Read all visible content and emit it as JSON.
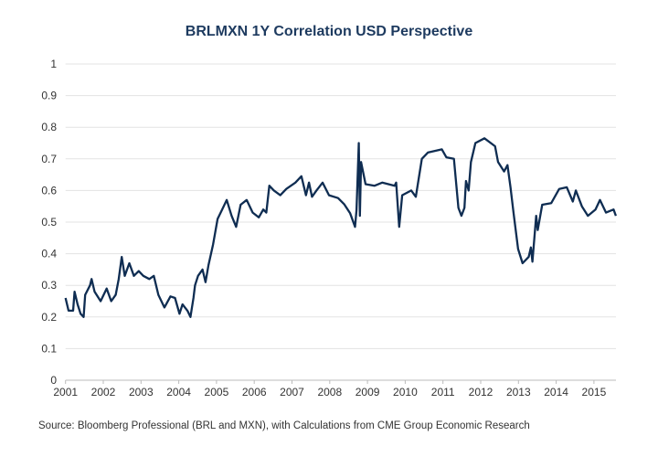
{
  "chart_data": {
    "type": "line",
    "title": "BRLMXN 1Y Correlation USD Perspective",
    "source": "Source: Bloomberg Professional (BRL and MXN), with Calculations from CME Group Economic Research",
    "xlabel": "",
    "ylabel": "",
    "xlim": [
      2001,
      2015.6
    ],
    "ylim": [
      0,
      1
    ],
    "grid": "horizontal",
    "legend": "none",
    "line_color": "#0f2d52",
    "x_ticks": [
      "2001",
      "2002",
      "2003",
      "2004",
      "2005",
      "2006",
      "2007",
      "2008",
      "2009",
      "2010",
      "2011",
      "2012",
      "2013",
      "2014",
      "2015"
    ],
    "y_ticks": [
      "0",
      "0.1",
      "0.2",
      "0.3",
      "0.4",
      "0.5",
      "0.6",
      "0.7",
      "0.8",
      "0.9",
      "1"
    ],
    "series": [
      {
        "x": [
          2001.0,
          2001.08,
          2001.2,
          2001.24,
          2001.32,
          2001.4,
          2001.48,
          2001.52,
          2001.65,
          2001.69,
          2001.77,
          2001.93,
          2002.09,
          2002.21,
          2002.33,
          2002.41,
          2002.49,
          2002.57,
          2002.69,
          2002.81,
          2002.94,
          2003.06,
          2003.22,
          2003.34,
          2003.46,
          2003.62,
          2003.78,
          2003.9,
          2004.02,
          2004.1,
          2004.23,
          2004.31,
          2004.39,
          2004.43,
          2004.51,
          2004.63,
          2004.71,
          2004.79,
          2004.91,
          2005.03,
          2005.15,
          2005.27,
          2005.4,
          2005.52,
          2005.64,
          2005.8,
          2005.96,
          2006.12,
          2006.24,
          2006.32,
          2006.4,
          2006.52,
          2006.69,
          2006.85,
          2007.09,
          2007.25,
          2007.37,
          2007.45,
          2007.53,
          2007.65,
          2007.81,
          2007.98,
          2008.22,
          2008.38,
          2008.54,
          2008.67,
          2008.71,
          2008.77,
          2008.8,
          2008.83,
          2008.95,
          2009.19,
          2009.39,
          2009.72,
          2009.76,
          2009.84,
          2009.92,
          2010.16,
          2010.28,
          2010.44,
          2010.6,
          2010.97,
          2011.09,
          2011.29,
          2011.41,
          2011.49,
          2011.57,
          2011.61,
          2011.68,
          2011.74,
          2011.86,
          2012.1,
          2012.38,
          2012.46,
          2012.62,
          2012.71,
          2012.79,
          2012.87,
          2012.99,
          2013.11,
          2013.27,
          2013.33,
          2013.37,
          2013.47,
          2013.51,
          2013.63,
          2013.87,
          2014.08,
          2014.28,
          2014.44,
          2014.52,
          2014.68,
          2014.84,
          2015.04,
          2015.16,
          2015.32,
          2015.52,
          2015.58
        ],
        "values": [
          0.26,
          0.22,
          0.22,
          0.28,
          0.24,
          0.21,
          0.2,
          0.27,
          0.3,
          0.32,
          0.28,
          0.25,
          0.29,
          0.25,
          0.27,
          0.32,
          0.39,
          0.33,
          0.37,
          0.33,
          0.345,
          0.33,
          0.32,
          0.33,
          0.27,
          0.23,
          0.265,
          0.26,
          0.21,
          0.24,
          0.22,
          0.2,
          0.26,
          0.3,
          0.33,
          0.35,
          0.31,
          0.365,
          0.43,
          0.51,
          0.54,
          0.57,
          0.52,
          0.485,
          0.555,
          0.57,
          0.53,
          0.515,
          0.54,
          0.53,
          0.615,
          0.6,
          0.585,
          0.605,
          0.625,
          0.645,
          0.585,
          0.625,
          0.58,
          0.6,
          0.625,
          0.585,
          0.576,
          0.557,
          0.528,
          0.485,
          0.538,
          0.75,
          0.52,
          0.69,
          0.62,
          0.615,
          0.625,
          0.615,
          0.625,
          0.485,
          0.585,
          0.6,
          0.58,
          0.7,
          0.72,
          0.73,
          0.705,
          0.7,
          0.545,
          0.52,
          0.545,
          0.63,
          0.6,
          0.69,
          0.75,
          0.765,
          0.74,
          0.69,
          0.66,
          0.68,
          0.61,
          0.53,
          0.415,
          0.37,
          0.39,
          0.42,
          0.375,
          0.52,
          0.475,
          0.555,
          0.56,
          0.605,
          0.61,
          0.565,
          0.6,
          0.55,
          0.52,
          0.54,
          0.57,
          0.53,
          0.54,
          0.52
        ]
      }
    ]
  }
}
